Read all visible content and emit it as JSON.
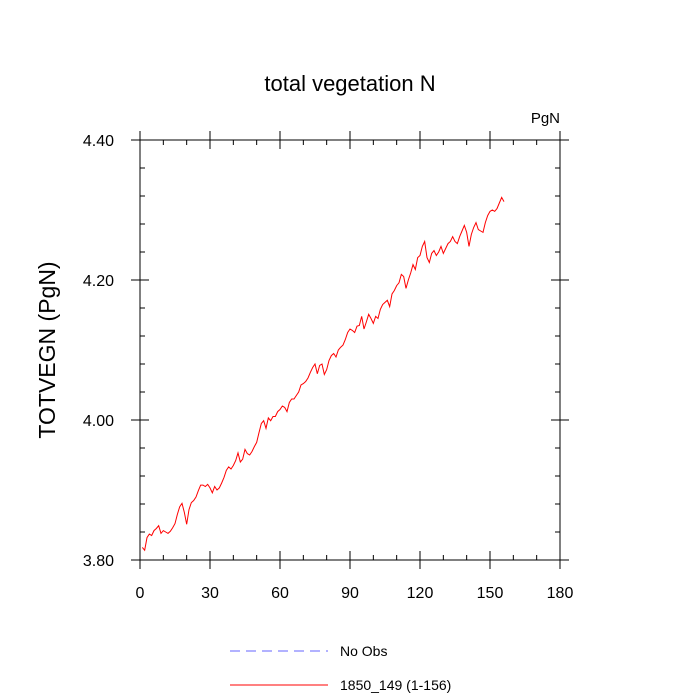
{
  "chart_data": {
    "type": "line",
    "title": "total vegetation N",
    "units_label": "PgN",
    "ylabel": "TOTVEGN  (PgN)",
    "xlabel": "",
    "xlim": [
      0,
      180
    ],
    "ylim": [
      3.8,
      4.4
    ],
    "xticks": [
      0,
      30,
      60,
      90,
      120,
      150,
      180
    ],
    "xtick_labels": [
      "0",
      "30",
      "60",
      "90",
      "120",
      "150",
      "180"
    ],
    "yticks": [
      3.8,
      4.0,
      4.2,
      4.4
    ],
    "ytick_labels": [
      "3.80",
      "4.00",
      "4.20",
      "4.40"
    ],
    "grid": false,
    "legend_position": "bottom",
    "series": [
      {
        "name": "No Obs",
        "color": "#6666ff",
        "style": "dashed",
        "x": [],
        "y": []
      },
      {
        "name": "1850_149 (1-156)",
        "color": "#ff0000",
        "style": "solid",
        "x": [
          1,
          2,
          3,
          4,
          5,
          6,
          7,
          8,
          9,
          10,
          11,
          12,
          13,
          14,
          15,
          16,
          17,
          18,
          19,
          20,
          21,
          22,
          23,
          24,
          25,
          26,
          27,
          28,
          29,
          30,
          31,
          32,
          33,
          34,
          35,
          36,
          37,
          38,
          39,
          40,
          41,
          42,
          43,
          44,
          45,
          46,
          47,
          48,
          49,
          50,
          51,
          52,
          53,
          54,
          55,
          56,
          57,
          58,
          59,
          60,
          61,
          62,
          63,
          64,
          65,
          66,
          67,
          68,
          69,
          70,
          71,
          72,
          73,
          74,
          75,
          76,
          77,
          78,
          79,
          80,
          81,
          82,
          83,
          84,
          85,
          86,
          87,
          88,
          89,
          90,
          91,
          92,
          93,
          94,
          95,
          96,
          97,
          98,
          99,
          100,
          101,
          102,
          103,
          104,
          105,
          106,
          107,
          108,
          109,
          110,
          111,
          112,
          113,
          114,
          115,
          116,
          117,
          118,
          119,
          120,
          121,
          122,
          123,
          124,
          125,
          126,
          127,
          128,
          129,
          130,
          131,
          132,
          133,
          134,
          135,
          136,
          137,
          138,
          139,
          140,
          141,
          142,
          143,
          144,
          145,
          146,
          147,
          148,
          149,
          150,
          151,
          152,
          153,
          154,
          155,
          156
        ],
        "y": [
          3.818,
          3.814,
          3.832,
          3.837,
          3.835,
          3.842,
          3.845,
          3.849,
          3.838,
          3.842,
          3.84,
          3.838,
          3.841,
          3.846,
          3.852,
          3.865,
          3.876,
          3.881,
          3.868,
          3.851,
          3.872,
          3.882,
          3.885,
          3.89,
          3.899,
          3.907,
          3.907,
          3.905,
          3.908,
          3.903,
          3.896,
          3.905,
          3.9,
          3.903,
          3.91,
          3.918,
          3.928,
          3.933,
          3.93,
          3.935,
          3.942,
          3.953,
          3.94,
          3.944,
          3.958,
          3.952,
          3.95,
          3.955,
          3.962,
          3.968,
          3.982,
          3.995,
          3.999,
          3.988,
          4.003,
          3.999,
          4.005,
          4.005,
          4.012,
          4.015,
          4.02,
          4.018,
          4.012,
          4.025,
          4.03,
          4.03,
          4.035,
          4.04,
          4.05,
          4.052,
          4.055,
          4.06,
          4.068,
          4.075,
          4.08,
          4.066,
          4.078,
          4.08,
          4.065,
          4.072,
          4.085,
          4.092,
          4.095,
          4.09,
          4.1,
          4.104,
          4.107,
          4.115,
          4.125,
          4.13,
          4.128,
          4.125,
          4.134,
          4.135,
          4.148,
          4.13,
          4.14,
          4.151,
          4.145,
          4.138,
          4.148,
          4.145,
          4.158,
          4.165,
          4.168,
          4.171,
          4.162,
          4.18,
          4.185,
          4.192,
          4.196,
          4.208,
          4.205,
          4.188,
          4.2,
          4.21,
          4.222,
          4.215,
          4.232,
          4.235,
          4.248,
          4.255,
          4.232,
          4.225,
          4.238,
          4.242,
          4.235,
          4.24,
          4.248,
          4.238,
          4.245,
          4.252,
          4.255,
          4.262,
          4.255,
          4.252,
          4.262,
          4.27,
          4.278,
          4.268,
          4.248,
          4.265,
          4.275,
          4.282,
          4.272,
          4.27,
          4.268,
          4.282,
          4.292,
          4.298,
          4.3,
          4.298,
          4.302,
          4.31,
          4.318,
          4.312
        ]
      }
    ]
  }
}
